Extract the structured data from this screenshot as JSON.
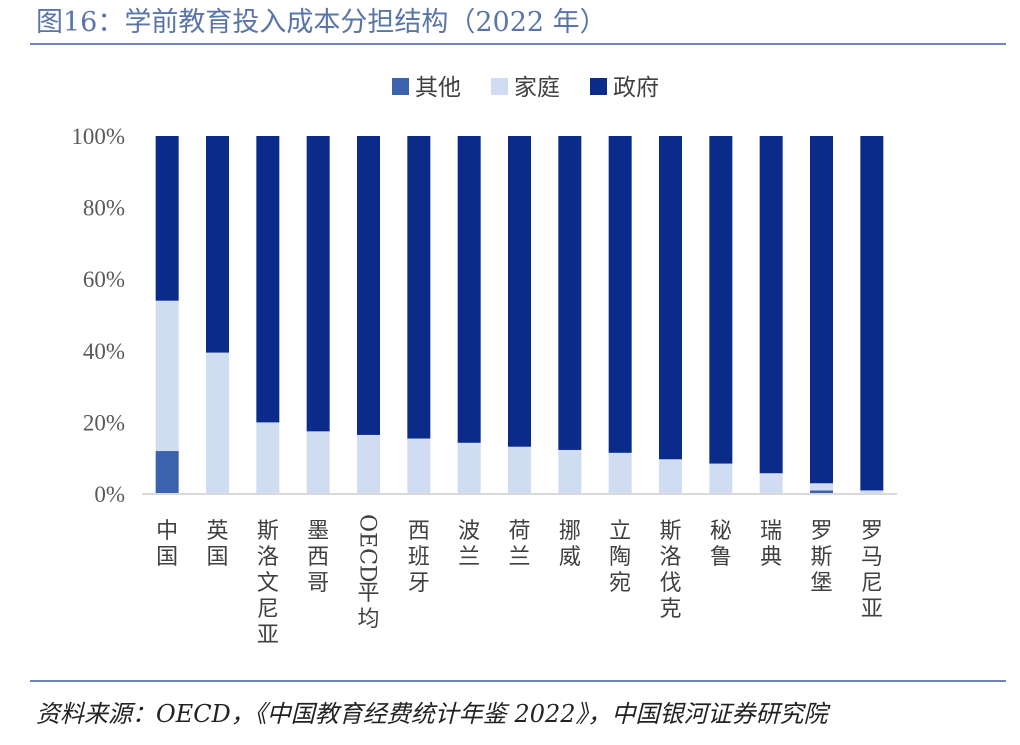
{
  "title": "图16：学前教育投入成本分担结构（2022 年）",
  "source": "资料来源：OECD，《中国教育经费统计年鉴 2022》，中国银河证券研究院",
  "colors": {
    "其他": "#3b62ad",
    "家庭": "#d0dcf1",
    "政府": "#0b2b8a",
    "rule": "#6f86b2",
    "axis": "#d9d9d9"
  },
  "chart_data": {
    "type": "stacked-bar",
    "title": "",
    "ylabel": "",
    "xlabel": "",
    "ylim": [
      0,
      100
    ],
    "yticks": [
      "0%",
      "20%",
      "40%",
      "60%",
      "80%",
      "100%"
    ],
    "legend_position": "top",
    "categories": [
      "中国",
      "英国",
      "斯洛文尼亚",
      "墨西哥",
      "OECD 平均",
      "西班牙",
      "波兰",
      "荷兰",
      "挪威",
      "立陶宛",
      "斯洛伐克",
      "秘鲁",
      "瑞典",
      "罗斯堡",
      "罗马尼亚"
    ],
    "series": [
      {
        "name": "其他",
        "values": [
          12,
          0,
          0,
          0,
          0,
          0,
          0,
          0,
          0,
          0,
          0,
          0,
          0,
          1,
          0
        ]
      },
      {
        "name": "家庭",
        "values": [
          42,
          39.5,
          20,
          17.5,
          16.5,
          15.5,
          14.3,
          13.2,
          12.3,
          11.5,
          9.7,
          8.5,
          5.8,
          2,
          1
        ]
      },
      {
        "name": "政府",
        "values": [
          46,
          60.5,
          80,
          82.5,
          83.5,
          84.5,
          85.7,
          86.8,
          87.7,
          88.5,
          90.3,
          91.5,
          94.2,
          97,
          99
        ]
      }
    ]
  }
}
